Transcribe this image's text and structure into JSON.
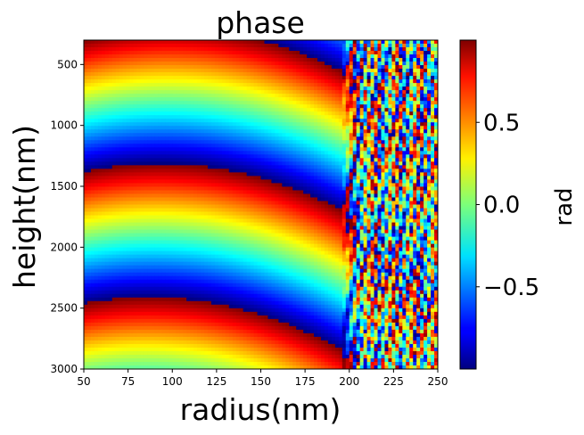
{
  "chart_data": {
    "type": "heatmap",
    "title": "phase",
    "xlabel": "radius(nm)",
    "ylabel": "height(nm)",
    "xlim": [
      50,
      250
    ],
    "ylim": [
      3000,
      300
    ],
    "xticks": [
      "50",
      "75",
      "100",
      "125",
      "150",
      "175",
      "200",
      "225",
      "250"
    ],
    "xtick_values": [
      50,
      75,
      100,
      125,
      150,
      175,
      200,
      225,
      250
    ],
    "yticks": [
      "500",
      "1000",
      "1500",
      "2000",
      "2500",
      "3000"
    ],
    "ytick_values": [
      500,
      1000,
      1500,
      2000,
      2500,
      3000
    ],
    "colormap": "jet",
    "color_range": [
      -1.0,
      1.0
    ],
    "colorbar": {
      "label": "rad",
      "ticks": [
        "0.5",
        "0.0",
        "−0.5"
      ],
      "tick_values": [
        0.5,
        0.0,
        -0.5
      ]
    },
    "grid": false
  }
}
